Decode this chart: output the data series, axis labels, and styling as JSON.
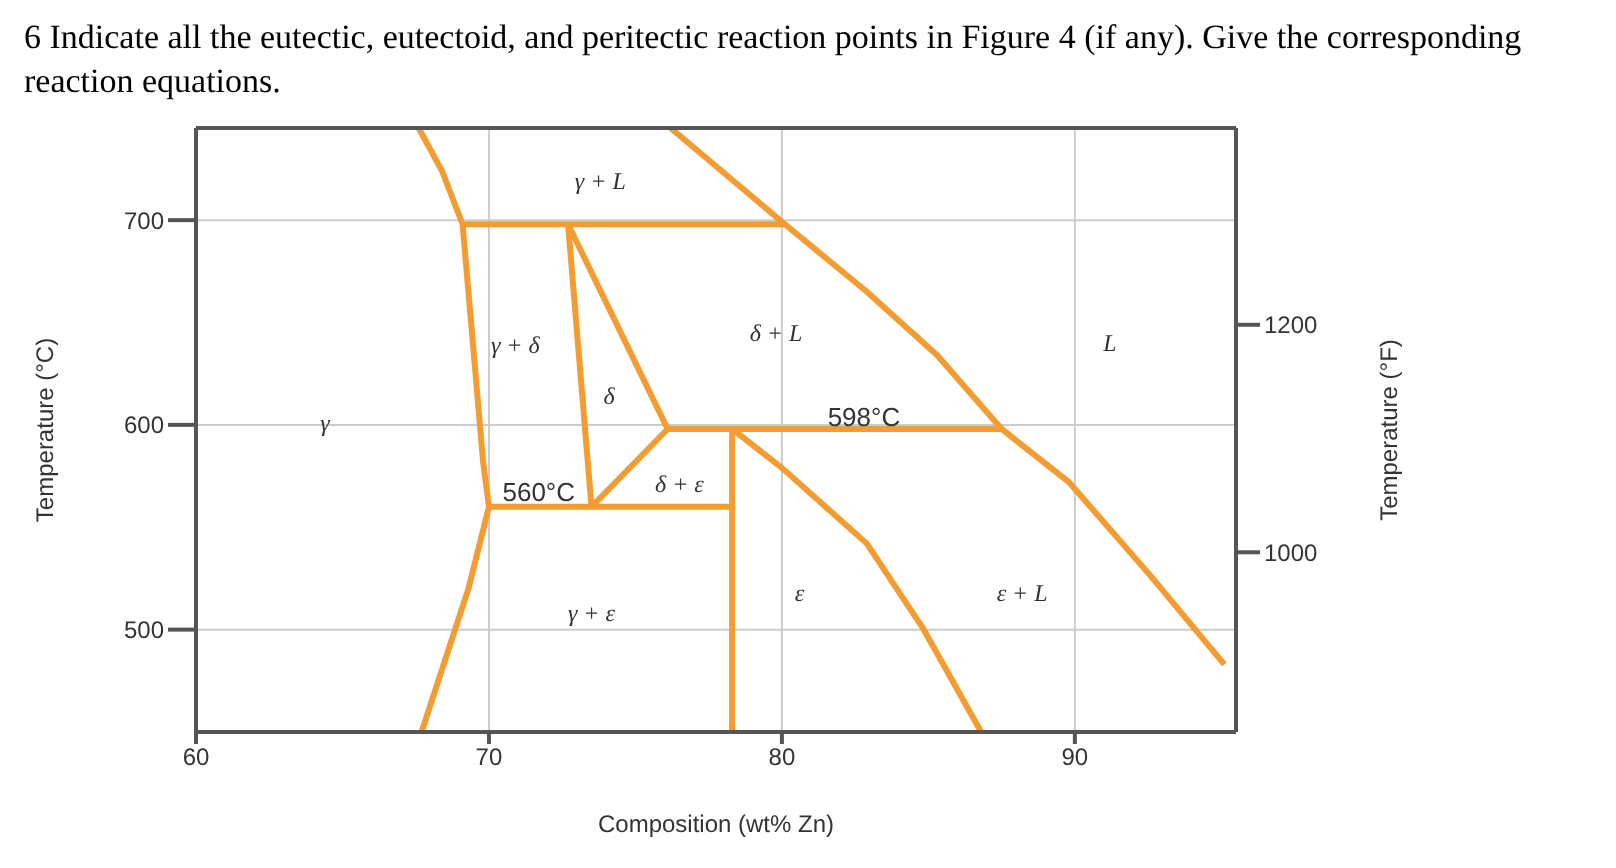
{
  "chart_data": {
    "type": "line",
    "title": "6 Indicate all the eutectic, eutectoid, and peritectic reaction points in Figure 4 (if any). Give the corresponding reaction equations.",
    "xlabel": "Composition (wt% Zn)",
    "ylabel": "Temperature (°C)",
    "y2label": "Temperature (°F)",
    "xlim": [
      60,
      95.5
    ],
    "xticks": [
      60,
      70,
      80,
      90
    ],
    "ylim": [
      450,
      745
    ],
    "yticks": [
      500,
      600,
      700
    ],
    "y2lim": [
      842,
      1373
    ],
    "y2ticks": [
      1000,
      1200
    ],
    "grid": true,
    "legend": false,
    "marker": "none",
    "line_style": "solid",
    "series": [
      {
        "color": "#f39c32",
        "x": [
          67.6,
          68.4,
          69.1,
          69.8,
          70,
          69.3,
          67.7
        ],
        "values": [
          745,
          724,
          698,
          582,
          560,
          520,
          450
        ]
      },
      {
        "color": "#f39c32",
        "x": [
          69.1,
          80.1
        ],
        "values": [
          698,
          698
        ]
      },
      {
        "color": "#f39c32",
        "x": [
          76.2,
          80.1,
          82.9,
          85.3,
          87.5,
          89.8,
          92.6,
          95.1
        ],
        "values": [
          745,
          698,
          665,
          634,
          598,
          572,
          526,
          483
        ]
      },
      {
        "color": "#f39c32",
        "x": [
          72.7,
          73.5
        ],
        "values": [
          698,
          560
        ]
      },
      {
        "color": "#f39c32",
        "x": [
          72.7,
          76.1
        ],
        "values": [
          698,
          598
        ]
      },
      {
        "color": "#f39c32",
        "x": [
          76.1,
          73.5
        ],
        "values": [
          598,
          560
        ]
      },
      {
        "color": "#f39c32",
        "x": [
          76.1,
          87.5
        ],
        "values": [
          598,
          598
        ]
      },
      {
        "color": "#f39c32",
        "x": [
          70,
          78.3
        ],
        "values": [
          560,
          560
        ]
      },
      {
        "color": "#f39c32",
        "x": [
          78.3,
          78.3
        ],
        "values": [
          598,
          450
        ]
      },
      {
        "color": "#f39c32",
        "x": [
          78.3,
          80,
          82.9,
          84.8,
          86.8
        ],
        "values": [
          598,
          579,
          542,
          501,
          450
        ]
      }
    ],
    "annotations": [
      "γ + L",
      "γ + δ",
      "δ + L",
      "δ",
      "γ",
      "L",
      "598°C",
      "560°C",
      "δ + ε",
      "γ + ε",
      "ε",
      "ε + L"
    ]
  }
}
